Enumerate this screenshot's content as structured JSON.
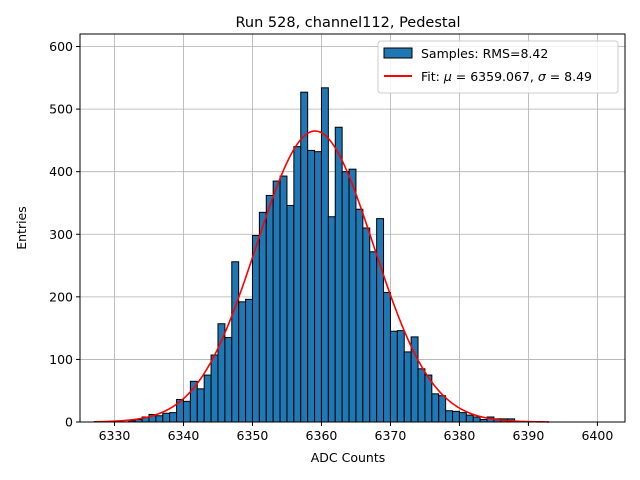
{
  "chart_data": {
    "type": "bar",
    "title": "Run 528, channel112, Pedestal",
    "xlabel": "ADC Counts",
    "ylabel": "Entries",
    "xlim": [
      6325,
      6404
    ],
    "ylim": [
      0,
      620
    ],
    "xticks": [
      6330,
      6340,
      6350,
      6360,
      6370,
      6380,
      6390,
      6400
    ],
    "yticks": [
      0,
      100,
      200,
      300,
      400,
      500,
      600
    ],
    "grid": true,
    "legend_position": "top-right",
    "legend": {
      "samples_label": "Samples: RMS=8.42",
      "fit_label_prefix": "Fit: ",
      "fit_mu_symbol": "μ",
      "fit_mu_text": " = 6359.067, ",
      "fit_sigma_symbol": "σ",
      "fit_sigma_text": " = 8.49"
    },
    "colors": {
      "bar": "#1f77b4",
      "edge": "#000000",
      "fit": "#ff0000",
      "grid": "#b0b0b0"
    },
    "histogram": {
      "bin_start": 6327,
      "bin_width": 1,
      "counts": [
        0,
        0,
        0,
        0,
        0,
        2,
        4,
        8,
        12,
        10,
        14,
        15,
        36,
        33,
        65,
        53,
        75,
        107,
        157,
        135,
        256,
        192,
        196,
        298,
        335,
        362,
        385,
        393,
        346,
        440,
        527,
        434,
        432,
        534,
        328,
        471,
        400,
        404,
        340,
        310,
        272,
        325,
        207,
        145,
        146,
        112,
        136,
        85,
        75,
        45,
        42,
        18,
        17,
        15,
        11,
        8,
        4,
        8,
        5,
        5,
        5,
        0,
        0,
        0,
        0,
        0,
        0,
        0,
        0,
        0,
        0,
        0,
        0
      ]
    },
    "fit": {
      "mu": 6359.067,
      "sigma": 8.49,
      "amplitude": 465,
      "x_range": [
        6327,
        6393
      ]
    }
  }
}
